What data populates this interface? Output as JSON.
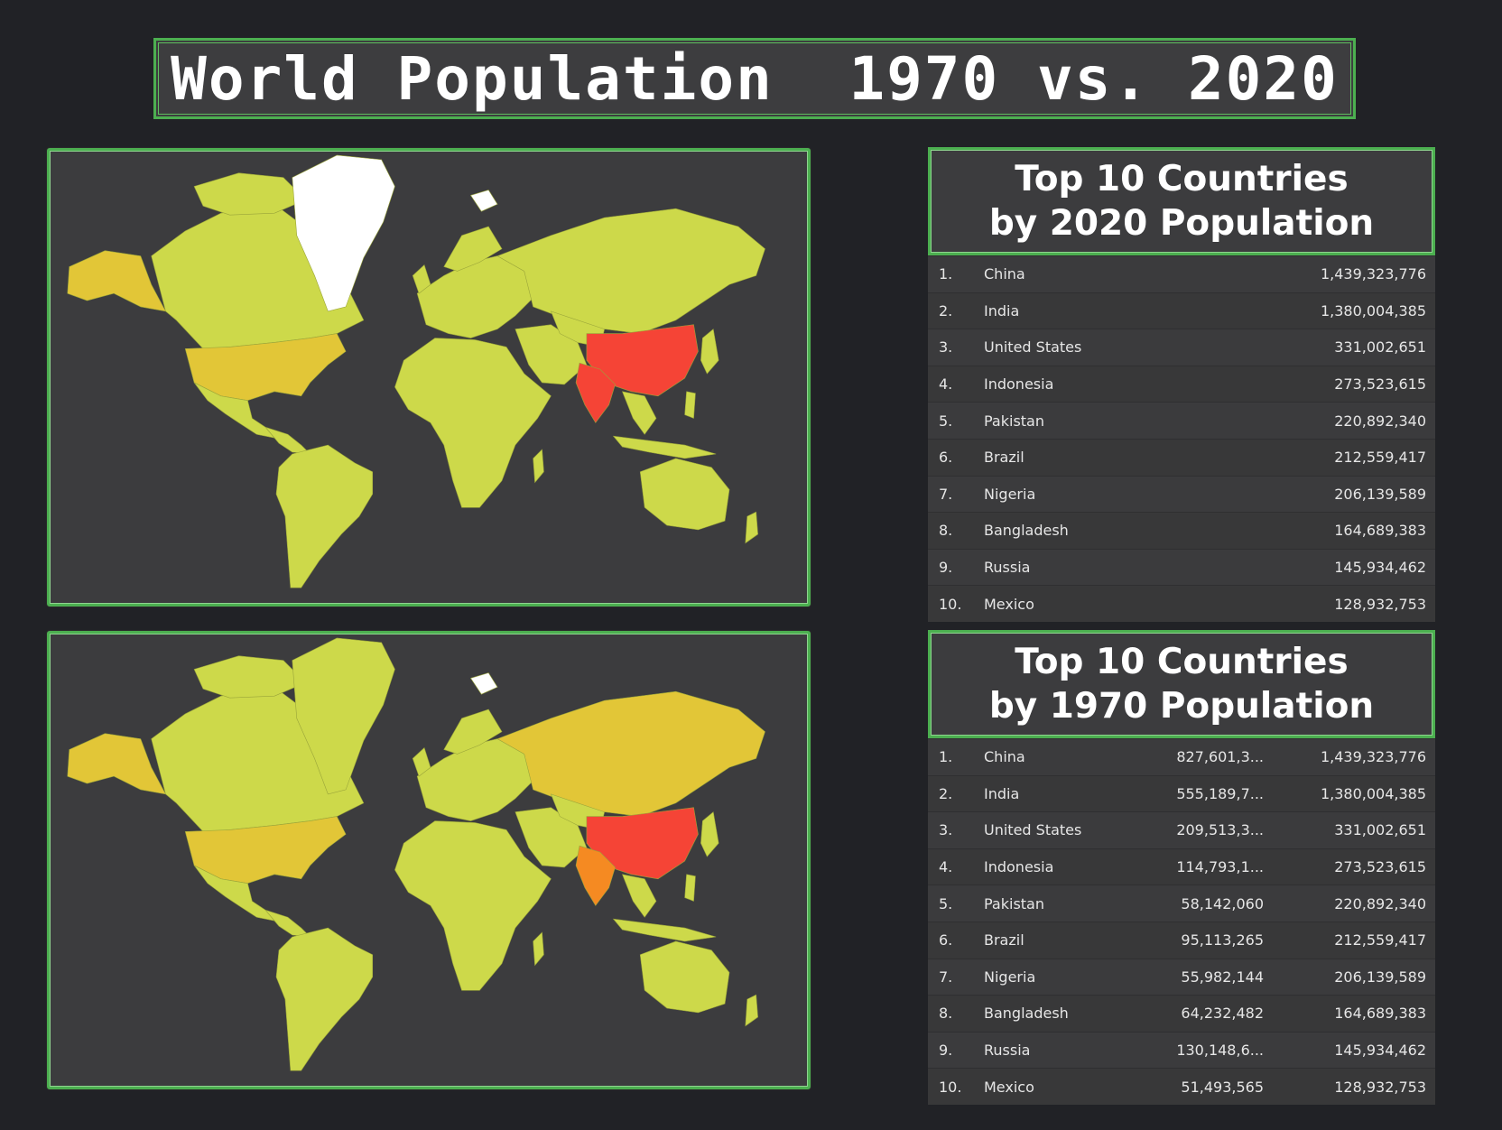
{
  "title": "World Population  1970 vs. 2020",
  "colors": {
    "background": "#212226",
    "panel": "#3c3c3e",
    "border": "#4caf50",
    "low": "#cdd94a",
    "mid": "#e2c637",
    "high": "#f54436",
    "india_1970": "#f58a22",
    "no_data": "#ffffff"
  },
  "maps": [
    {
      "id": "map-2020",
      "highlight": {
        "China": "high",
        "India": "high",
        "United States": "mid",
        "Russia": "low",
        "Brazil": "low"
      }
    },
    {
      "id": "map-1970",
      "highlight": {
        "China": "high",
        "India": "india_1970",
        "United States": "mid",
        "Russia": "mid"
      }
    }
  ],
  "table_2020": {
    "header_line1": "Top 10 Countries",
    "header_line2": "by 2020 Population",
    "rows": [
      {
        "rank": "1.",
        "country": "China",
        "pop2020": "1,439,323,776"
      },
      {
        "rank": "2.",
        "country": "India",
        "pop2020": "1,380,004,385"
      },
      {
        "rank": "3.",
        "country": "United States",
        "pop2020": "331,002,651"
      },
      {
        "rank": "4.",
        "country": "Indonesia",
        "pop2020": "273,523,615"
      },
      {
        "rank": "5.",
        "country": "Pakistan",
        "pop2020": "220,892,340"
      },
      {
        "rank": "6.",
        "country": "Brazil",
        "pop2020": "212,559,417"
      },
      {
        "rank": "7.",
        "country": "Nigeria",
        "pop2020": "206,139,589"
      },
      {
        "rank": "8.",
        "country": "Bangladesh",
        "pop2020": "164,689,383"
      },
      {
        "rank": "9.",
        "country": "Russia",
        "pop2020": "145,934,462"
      },
      {
        "rank": "10.",
        "country": "Mexico",
        "pop2020": "128,932,753"
      }
    ]
  },
  "table_1970": {
    "header_line1": "Top 10 Countries",
    "header_line2": "by 1970 Population",
    "rows": [
      {
        "rank": "1.",
        "country": "China",
        "pop1970": "827,601,3...",
        "pop2020": "1,439,323,776"
      },
      {
        "rank": "2.",
        "country": "India",
        "pop1970": "555,189,7...",
        "pop2020": "1,380,004,385"
      },
      {
        "rank": "3.",
        "country": "United States",
        "pop1970": "209,513,3...",
        "pop2020": "331,002,651"
      },
      {
        "rank": "4.",
        "country": "Indonesia",
        "pop1970": "114,793,1...",
        "pop2020": "273,523,615"
      },
      {
        "rank": "5.",
        "country": "Pakistan",
        "pop1970": "58,142,060",
        "pop2020": "220,892,340"
      },
      {
        "rank": "6.",
        "country": "Brazil",
        "pop1970": "95,113,265",
        "pop2020": "212,559,417"
      },
      {
        "rank": "7.",
        "country": "Nigeria",
        "pop1970": "55,982,144",
        "pop2020": "206,139,589"
      },
      {
        "rank": "8.",
        "country": "Bangladesh",
        "pop1970": "64,232,482",
        "pop2020": "164,689,383"
      },
      {
        "rank": "9.",
        "country": "Russia",
        "pop1970": "130,148,6...",
        "pop2020": "145,934,462"
      },
      {
        "rank": "10.",
        "country": "Mexico",
        "pop1970": "51,493,565",
        "pop2020": "128,932,753"
      }
    ]
  }
}
